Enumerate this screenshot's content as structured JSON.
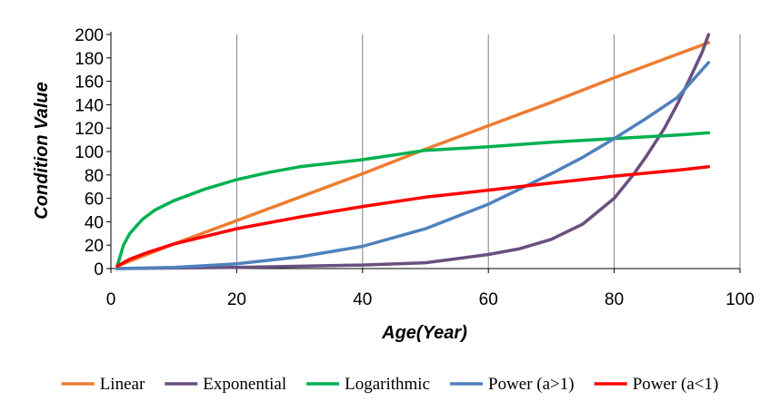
{
  "chart_data": {
    "type": "line",
    "title": "",
    "xlabel": "Age(Year)",
    "ylabel": "Condition Value",
    "xlim": [
      0,
      100
    ],
    "ylim": [
      0,
      200
    ],
    "xticks": [
      0,
      20,
      40,
      60,
      80,
      100
    ],
    "yticks": [
      0,
      20,
      40,
      60,
      80,
      100,
      120,
      140,
      160,
      180,
      200
    ],
    "grid": "vertical",
    "legend": "bottom",
    "series": [
      {
        "name": "Linear",
        "color": "#ED7D31",
        "x": [
          1,
          10,
          20,
          30,
          40,
          50,
          60,
          70,
          80,
          90,
          95
        ],
        "y": [
          2,
          21,
          41,
          61,
          81,
          102,
          122,
          142,
          163,
          183,
          193
        ]
      },
      {
        "name": "Exponential",
        "color": "#69507F",
        "x": [
          1,
          20,
          40,
          50,
          60,
          65,
          70,
          75,
          80,
          83,
          85,
          88,
          90,
          92,
          94,
          95
        ],
        "y": [
          0,
          1,
          3,
          5,
          12,
          17,
          25,
          38,
          60,
          80,
          95,
          120,
          140,
          162,
          185,
          200
        ]
      },
      {
        "name": "Logarithmic",
        "color": "#00B050",
        "x": [
          1,
          2,
          3,
          5,
          7,
          10,
          15,
          20,
          25,
          30,
          40,
          50,
          60,
          70,
          80,
          90,
          95
        ],
        "y": [
          2,
          20,
          30,
          42,
          50,
          58,
          68,
          76,
          82,
          87,
          93,
          101,
          104,
          108,
          111,
          114,
          116
        ]
      },
      {
        "name": "Power (a>1)",
        "color": "#4F81BD",
        "x": [
          1,
          10,
          20,
          30,
          40,
          50,
          60,
          65,
          70,
          75,
          80,
          85,
          90,
          95
        ],
        "y": [
          0,
          1,
          4,
          10,
          19,
          34,
          55,
          68,
          81,
          95,
          111,
          128,
          146,
          176
        ]
      },
      {
        "name": "Power (a<1)",
        "color": "#FF0000",
        "x": [
          1,
          3,
          6,
          10,
          20,
          30,
          40,
          50,
          60,
          70,
          80,
          90,
          95
        ],
        "y": [
          2,
          8,
          14,
          21,
          34,
          44,
          53,
          61,
          67,
          73,
          79,
          84,
          87
        ]
      }
    ]
  }
}
